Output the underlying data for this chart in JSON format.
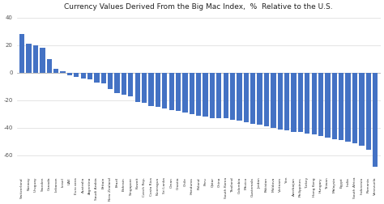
{
  "title": "Currency Values Derived From the Big Mac Index,  %  Relative to the U.S.",
  "bar_color": "#4472C4",
  "background_color": "#ffffff",
  "categories": [
    "Switzerland",
    "Norway",
    "Uruguay",
    "Sweden",
    "Canada",
    "Lebanon",
    "Israel",
    "UAE",
    "Euro area",
    "Australia",
    "Argentina",
    "Saudi Arabia",
    "Britain",
    "New Zealand",
    "Brazil",
    "Bahrain",
    "Singapore",
    "Kuwait",
    "Czech Rep.",
    "Costa Rica",
    "Nicaragua",
    "Sri Lanka",
    "Oman",
    "Croatia",
    "Chile",
    "Honduras",
    "Poland",
    "Peru",
    "Qatar",
    "China",
    "South Korea",
    "Thailand",
    "Colombia",
    "Mexico",
    "Guatemala",
    "Jordan",
    "Pakistan",
    "Moldova",
    "Vietnam",
    "Yen",
    "Azerbaijan",
    "Philippines",
    "Turkey",
    "Hong Kong",
    "Hungary",
    "Taiwan",
    "Malaysia",
    "Egypt",
    "India",
    "South Africa",
    "Indonesia",
    "Romania",
    "Venezuela"
  ],
  "values": [
    28,
    21,
    20,
    18,
    10,
    3,
    1,
    -2,
    -3,
    -4,
    -5,
    -7,
    -8,
    -12,
    -15,
    -16,
    -17,
    -21,
    -22,
    -24,
    -25,
    -26,
    -27,
    -28,
    -29,
    -30,
    -31,
    -32,
    -33,
    -33,
    -33,
    -34,
    -35,
    -36,
    -37,
    -38,
    -39,
    -40,
    -41,
    -42,
    -43,
    -43,
    -44,
    -45,
    -46,
    -47,
    -48,
    -49,
    -50,
    -51,
    -53,
    -56,
    -68
  ],
  "ylim": [
    -75,
    42
  ],
  "yticks": [
    40,
    20,
    0,
    -20,
    -40,
    -60
  ],
  "grid_color": "#d9d9d9"
}
